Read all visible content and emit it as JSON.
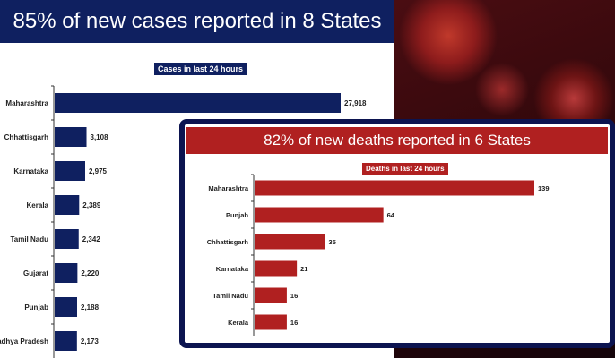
{
  "chart_data": [
    {
      "type": "bar",
      "orientation": "horizontal",
      "title": "85% of new cases reported in 8 States",
      "subtitle": "Cases in last 24 hours",
      "categories": [
        "Maharashtra",
        "Chhattisgarh",
        "Karnataka",
        "Kerala",
        "Tamil Nadu",
        "Gujarat",
        "Punjab",
        "Madhya Pradesh"
      ],
      "values": [
        27918,
        3108,
        2975,
        2389,
        2342,
        2220,
        2188,
        2173
      ],
      "labels": [
        "27,918",
        "3,108",
        "2,975",
        "2,389",
        "2,342",
        "2,220",
        "2,188",
        "2,173"
      ],
      "color": "#0f2060",
      "grid": false
    },
    {
      "type": "bar",
      "orientation": "horizontal",
      "title": "82% of new deaths reported in 6 States",
      "subtitle": "Deaths in last 24 hours",
      "categories": [
        "Maharashtra",
        "Punjab",
        "Chhattisgarh",
        "Karnataka",
        "Tamil Nadu",
        "Kerala"
      ],
      "values": [
        139,
        64,
        35,
        21,
        16,
        16
      ],
      "labels": [
        "139",
        "64",
        "35",
        "21",
        "16",
        "16"
      ],
      "color": "#b02020",
      "grid": false
    }
  ]
}
